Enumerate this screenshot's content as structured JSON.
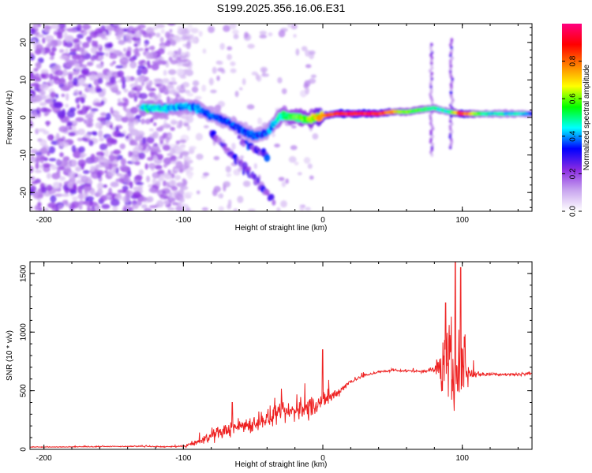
{
  "title": "S199.2025.356.16.06.E31",
  "chart_data": [
    {
      "type": "heatmap",
      "name": "spectrogram",
      "xlabel": "Height of straight line (km)",
      "ylabel": "Frequency (Hz)",
      "xlim": [
        -210,
        150
      ],
      "ylim": [
        -25,
        25
      ],
      "xticks": [
        -200,
        -100,
        0,
        100
      ],
      "yticks": [
        -20,
        -10,
        0,
        10,
        20
      ],
      "colorbar": {
        "label": "Normalized spectral amplitude",
        "range": [
          0,
          1
        ],
        "ticks": [
          0.0,
          0.2,
          0.4,
          0.6,
          0.8
        ],
        "colors": [
          "#ffffff",
          "#c9a6ef",
          "#8a2be2",
          "#0000ff",
          "#00ffff",
          "#00ff00",
          "#ffff00",
          "#ff8000",
          "#ff0000",
          "#ff0080"
        ]
      },
      "ridge": {
        "x": [
          -130,
          -120,
          -110,
          -100,
          -90,
          -80,
          -70,
          -60,
          -50,
          -40,
          -30,
          -20,
          -10,
          0,
          10,
          20,
          30,
          40,
          50,
          60,
          70,
          80,
          90,
          100,
          110,
          120,
          130,
          140,
          150
        ],
        "freq": [
          2.5,
          2.5,
          2.5,
          3.0,
          2.5,
          0.5,
          -1.0,
          -3.0,
          -5.0,
          -4.0,
          0.5,
          0.0,
          -0.5,
          0.5,
          1.0,
          1.0,
          1.0,
          1.0,
          1.5,
          1.5,
          2.0,
          2.5,
          1.5,
          1.0,
          1.0,
          1.0,
          1.0,
          1.0,
          1.0
        ],
        "amplitude": [
          0.45,
          0.45,
          0.4,
          0.4,
          0.4,
          0.35,
          0.35,
          0.35,
          0.35,
          0.35,
          0.5,
          0.55,
          0.6,
          0.75,
          0.9,
          0.95,
          0.95,
          0.9,
          0.75,
          0.6,
          0.55,
          0.5,
          0.45,
          0.9,
          0.6,
          0.45,
          0.45,
          0.45,
          0.4
        ]
      },
      "branches": [
        {
          "x": [
            -80,
            -70,
            -60,
            -50,
            -40,
            -35
          ],
          "freq": [
            -4,
            -8,
            -12,
            -16,
            -20,
            -22
          ],
          "amplitude": 0.25
        },
        {
          "x": [
            -60,
            -50,
            -40
          ],
          "freq": [
            -5,
            -8,
            -10
          ],
          "amplitude": 0.3
        }
      ],
      "noise_region": {
        "x": [
          -210,
          -95
        ],
        "amplitude": 0.2
      },
      "spikes": [
        {
          "x": 78,
          "freq": [
            -10,
            20
          ],
          "amplitude": 0.2
        },
        {
          "x": 92,
          "freq": [
            -8,
            21
          ],
          "amplitude": 0.25
        }
      ]
    },
    {
      "type": "line",
      "name": "snr",
      "xlabel": "Height of straight line (km)",
      "ylabel": "SNR (10 * v/v)",
      "xlim": [
        -210,
        150
      ],
      "ylim": [
        0,
        1600
      ],
      "xticks": [
        -200,
        -100,
        0,
        100
      ],
      "yticks": [
        0,
        500,
        1000,
        1500
      ],
      "color": "#ee2222",
      "series": [
        {
          "name": "SNR",
          "x": [
            -210,
            -190,
            -170,
            -150,
            -130,
            -110,
            -100,
            -90,
            -80,
            -70,
            -60,
            -50,
            -40,
            -30,
            -20,
            -10,
            0,
            10,
            20,
            30,
            40,
            50,
            60,
            70,
            80,
            85,
            90,
            95,
            100,
            105,
            110,
            120,
            130,
            140,
            150
          ],
          "values": [
            20,
            20,
            22,
            25,
            25,
            22,
            25,
            60,
            110,
            160,
            200,
            220,
            260,
            300,
            330,
            360,
            400,
            480,
            580,
            630,
            660,
            670,
            670,
            665,
            680,
            700,
            680,
            660,
            700,
            650,
            640,
            640,
            640,
            640,
            650
          ],
          "noise": [
            5,
            5,
            5,
            5,
            6,
            8,
            10,
            40,
            70,
            90,
            100,
            110,
            120,
            130,
            140,
            140,
            120,
            60,
            30,
            20,
            15,
            15,
            15,
            20,
            40,
            300,
            600,
            700,
            350,
            100,
            40,
            20,
            20,
            20,
            20
          ]
        }
      ],
      "annotations": [
        {
          "x": 0,
          "value": 850
        },
        {
          "x": 95,
          "value": 1600
        },
        {
          "x": 99,
          "value": 1550
        },
        {
          "x": 88,
          "value": 1250
        },
        {
          "x": -65,
          "value": 400
        }
      ]
    }
  ]
}
